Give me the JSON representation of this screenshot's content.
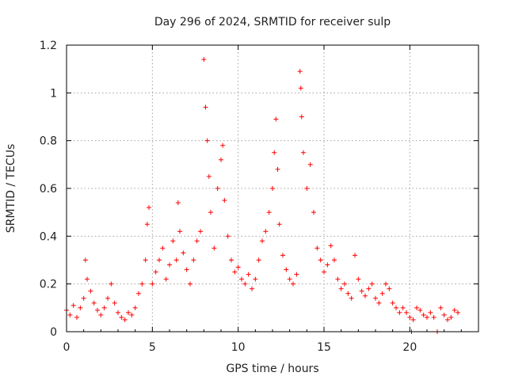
{
  "chart_data": {
    "type": "scatter",
    "title": "Day 296 of 2024, SRMTID for receiver sulp",
    "xlabel": "GPS time / hours",
    "ylabel": "SRMTID / TECUs",
    "xlim": [
      0,
      24
    ],
    "ylim": [
      0,
      1.2
    ],
    "xticks": [
      0,
      5,
      10,
      15,
      20
    ],
    "xtick_labels": [
      "0",
      "5",
      "10",
      "15",
      "20"
    ],
    "yticks": [
      0,
      0.2,
      0.4,
      0.6,
      0.8,
      1.0,
      1.2
    ],
    "ytick_labels": [
      "0",
      "0.2",
      "0.4",
      "0.6",
      "0.8",
      "1",
      "1.2"
    ],
    "grid": true,
    "marker": "+",
    "series": [
      {
        "name": "SRMTID",
        "color": "#ff0000",
        "points": [
          [
            0.0,
            0.09
          ],
          [
            0.2,
            0.07
          ],
          [
            0.4,
            0.11
          ],
          [
            0.6,
            0.06
          ],
          [
            0.8,
            0.1
          ],
          [
            1.0,
            0.14
          ],
          [
            1.1,
            0.3
          ],
          [
            1.2,
            0.22
          ],
          [
            1.4,
            0.17
          ],
          [
            1.6,
            0.12
          ],
          [
            1.8,
            0.09
          ],
          [
            2.0,
            0.07
          ],
          [
            2.2,
            0.1
          ],
          [
            2.4,
            0.14
          ],
          [
            2.6,
            0.2
          ],
          [
            2.8,
            0.12
          ],
          [
            3.0,
            0.08
          ],
          [
            3.2,
            0.06
          ],
          [
            3.4,
            0.05
          ],
          [
            3.6,
            0.08
          ],
          [
            3.8,
            0.07
          ],
          [
            4.0,
            0.1
          ],
          [
            4.2,
            0.16
          ],
          [
            4.4,
            0.2
          ],
          [
            4.6,
            0.3
          ],
          [
            4.7,
            0.45
          ],
          [
            4.8,
            0.52
          ],
          [
            5.0,
            0.2
          ],
          [
            5.2,
            0.25
          ],
          [
            5.4,
            0.3
          ],
          [
            5.6,
            0.35
          ],
          [
            5.8,
            0.22
          ],
          [
            6.0,
            0.28
          ],
          [
            6.2,
            0.38
          ],
          [
            6.4,
            0.3
          ],
          [
            6.5,
            0.54
          ],
          [
            6.6,
            0.42
          ],
          [
            6.8,
            0.33
          ],
          [
            7.0,
            0.26
          ],
          [
            7.2,
            0.2
          ],
          [
            7.4,
            0.3
          ],
          [
            7.6,
            0.38
          ],
          [
            7.8,
            0.42
          ],
          [
            8.0,
            1.14
          ],
          [
            8.1,
            0.94
          ],
          [
            8.2,
            0.8
          ],
          [
            8.3,
            0.65
          ],
          [
            8.4,
            0.5
          ],
          [
            8.6,
            0.35
          ],
          [
            8.8,
            0.6
          ],
          [
            9.0,
            0.72
          ],
          [
            9.1,
            0.78
          ],
          [
            9.2,
            0.55
          ],
          [
            9.4,
            0.4
          ],
          [
            9.6,
            0.3
          ],
          [
            9.8,
            0.25
          ],
          [
            10.0,
            0.27
          ],
          [
            10.2,
            0.22
          ],
          [
            10.4,
            0.2
          ],
          [
            10.6,
            0.24
          ],
          [
            10.8,
            0.18
          ],
          [
            11.0,
            0.22
          ],
          [
            11.2,
            0.3
          ],
          [
            11.4,
            0.38
          ],
          [
            11.6,
            0.42
          ],
          [
            11.8,
            0.5
          ],
          [
            12.0,
            0.6
          ],
          [
            12.1,
            0.75
          ],
          [
            12.2,
            0.89
          ],
          [
            12.3,
            0.68
          ],
          [
            12.4,
            0.45
          ],
          [
            12.6,
            0.32
          ],
          [
            12.8,
            0.26
          ],
          [
            13.0,
            0.22
          ],
          [
            13.2,
            0.2
          ],
          [
            13.4,
            0.24
          ],
          [
            13.6,
            1.09
          ],
          [
            13.65,
            1.02
          ],
          [
            13.7,
            0.9
          ],
          [
            13.8,
            0.75
          ],
          [
            14.0,
            0.6
          ],
          [
            14.2,
            0.7
          ],
          [
            14.4,
            0.5
          ],
          [
            14.6,
            0.35
          ],
          [
            14.8,
            0.3
          ],
          [
            15.0,
            0.25
          ],
          [
            15.2,
            0.28
          ],
          [
            15.4,
            0.36
          ],
          [
            15.6,
            0.3
          ],
          [
            15.8,
            0.22
          ],
          [
            16.0,
            0.18
          ],
          [
            16.2,
            0.2
          ],
          [
            16.4,
            0.16
          ],
          [
            16.6,
            0.14
          ],
          [
            16.8,
            0.32
          ],
          [
            17.0,
            0.22
          ],
          [
            17.2,
            0.17
          ],
          [
            17.4,
            0.15
          ],
          [
            17.6,
            0.18
          ],
          [
            17.8,
            0.2
          ],
          [
            18.0,
            0.14
          ],
          [
            18.2,
            0.12
          ],
          [
            18.4,
            0.16
          ],
          [
            18.6,
            0.2
          ],
          [
            18.8,
            0.18
          ],
          [
            19.0,
            0.12
          ],
          [
            19.2,
            0.1
          ],
          [
            19.4,
            0.08
          ],
          [
            19.6,
            0.1
          ],
          [
            19.8,
            0.08
          ],
          [
            20.0,
            0.06
          ],
          [
            20.1,
            0.0
          ],
          [
            20.2,
            0.05
          ],
          [
            20.4,
            0.1
          ],
          [
            20.6,
            0.09
          ],
          [
            20.8,
            0.07
          ],
          [
            21.0,
            0.06
          ],
          [
            21.2,
            0.08
          ],
          [
            21.4,
            0.06
          ],
          [
            21.6,
            0.0
          ],
          [
            21.8,
            0.1
          ],
          [
            22.0,
            0.07
          ],
          [
            22.2,
            0.05
          ],
          [
            22.4,
            0.06
          ],
          [
            22.6,
            0.09
          ],
          [
            22.8,
            0.08
          ]
        ]
      }
    ]
  }
}
